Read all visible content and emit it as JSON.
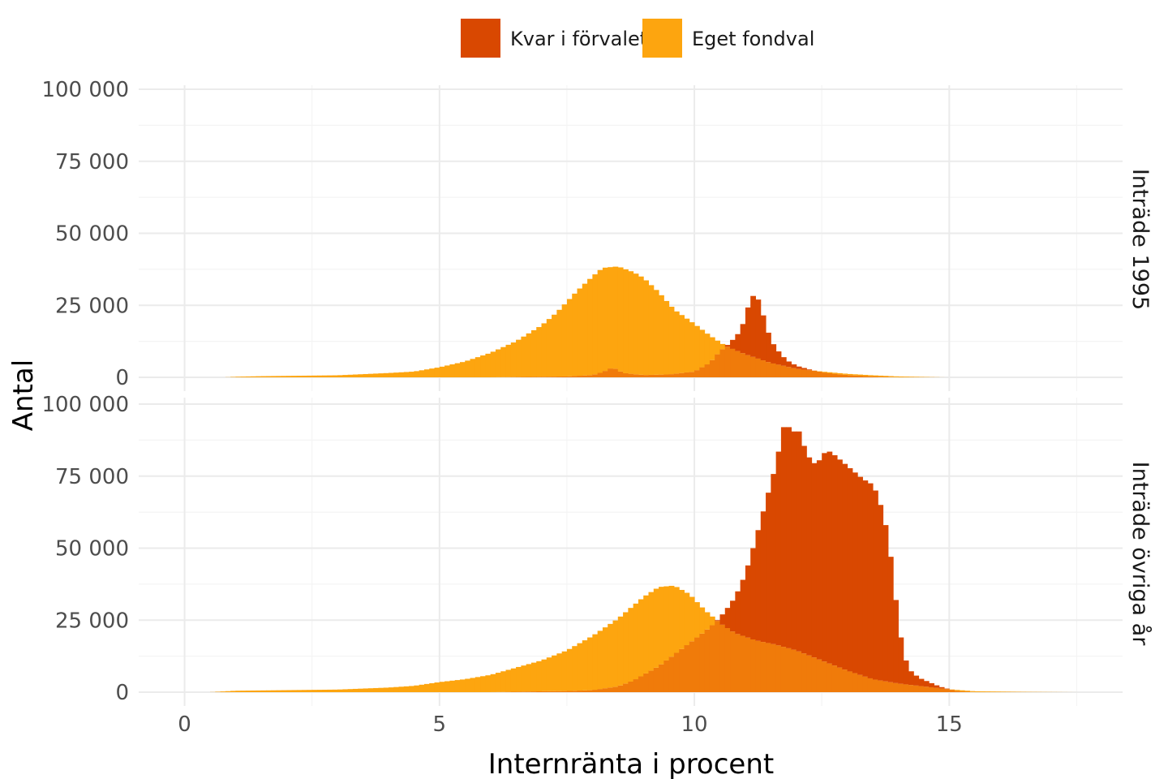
{
  "colors": {
    "kvar": "#D94801",
    "eget": "#FDA50F",
    "overlap": "#F07B0A",
    "grid_major": "#EBEBEB",
    "grid_minor": "#F4F4F4",
    "text": "#4D4D4D"
  },
  "legend": {
    "kvar": "Kvar i förvalet",
    "eget": "Eget fondval"
  },
  "chart_data": {
    "type": "histogram",
    "xlabel": "Internränta i procent",
    "ylabel": "Antal",
    "xlim": [
      -0.9,
      18.4
    ],
    "x_ticks": [
      0,
      5,
      10,
      15
    ],
    "x_tick_labels": [
      "0",
      "5",
      "10",
      "15"
    ],
    "y_ticks": [
      0,
      25000,
      50000,
      75000,
      100000
    ],
    "y_tick_labels": [
      "0",
      "25 000",
      "50 000",
      "75 000",
      "100 000"
    ],
    "legend_position": "top",
    "grid": true,
    "panels": [
      {
        "label": "Inträde 1995",
        "ylim": [
          0,
          100000
        ],
        "series": [
          {
            "name": "Eget fondval",
            "color_key": "eget",
            "points": [
              [
                0.8,
                0
              ],
              [
                1.0,
                200
              ],
              [
                1.5,
                400
              ],
              [
                2.0,
                500
              ],
              [
                3.0,
                700
              ],
              [
                4.0,
                1500
              ],
              [
                4.5,
                2000
              ],
              [
                5.0,
                3500
              ],
              [
                5.5,
                5500
              ],
              [
                6.0,
                8500
              ],
              [
                6.5,
                12500
              ],
              [
                7.0,
                18000
              ],
              [
                7.3,
                22500
              ],
              [
                7.7,
                30000
              ],
              [
                8.0,
                35000
              ],
              [
                8.2,
                38000
              ],
              [
                8.5,
                38500
              ],
              [
                8.8,
                36500
              ],
              [
                9.0,
                34500
              ],
              [
                9.3,
                29500
              ],
              [
                9.6,
                23500
              ],
              [
                10.0,
                18500
              ],
              [
                10.3,
                14500
              ],
              [
                10.6,
                11000
              ],
              [
                11.0,
                8000
              ],
              [
                11.5,
                5000
              ],
              [
                12.0,
                3000
              ],
              [
                12.5,
                2000
              ],
              [
                13.0,
                1200
              ],
              [
                13.5,
                700
              ],
              [
                14.0,
                300
              ],
              [
                14.9,
                0
              ]
            ]
          },
          {
            "name": "Kvar i förvalet",
            "color_key": "kvar",
            "points": [
              [
                6.0,
                0
              ],
              [
                6.5,
                100
              ],
              [
                7.0,
                200
              ],
              [
                7.5,
                300
              ],
              [
                8.0,
                800
              ],
              [
                8.2,
                1800
              ],
              [
                8.4,
                3500
              ],
              [
                8.6,
                1500
              ],
              [
                9.0,
                800
              ],
              [
                9.5,
                1000
              ],
              [
                10.0,
                2000
              ],
              [
                10.3,
                5000
              ],
              [
                10.5,
                9000
              ],
              [
                10.7,
                12000
              ],
              [
                10.9,
                16000
              ],
              [
                11.0,
                21000
              ],
              [
                11.1,
                27500
              ],
              [
                11.2,
                29000
              ],
              [
                11.3,
                25000
              ],
              [
                11.4,
                18000
              ],
              [
                11.5,
                13000
              ],
              [
                11.6,
                10000
              ],
              [
                11.8,
                6000
              ],
              [
                12.0,
                4000
              ],
              [
                12.3,
                2500
              ],
              [
                12.6,
                1500
              ],
              [
                13.0,
                800
              ],
              [
                13.5,
                300
              ],
              [
                14.0,
                0
              ]
            ]
          }
        ]
      },
      {
        "label": "Inträde övriga år",
        "ylim": [
          0,
          100000
        ],
        "series": [
          {
            "name": "Eget fondval",
            "color_key": "eget",
            "points": [
              [
                0.5,
                0
              ],
              [
                1.0,
                500
              ],
              [
                2.0,
                700
              ],
              [
                3.0,
                900
              ],
              [
                4.0,
                1600
              ],
              [
                4.5,
                2200
              ],
              [
                5.0,
                3500
              ],
              [
                5.5,
                4500
              ],
              [
                6.0,
                6000
              ],
              [
                6.5,
                8500
              ],
              [
                7.0,
                11000
              ],
              [
                7.5,
                14500
              ],
              [
                8.0,
                19500
              ],
              [
                8.5,
                25500
              ],
              [
                9.0,
                33000
              ],
              [
                9.3,
                36500
              ],
              [
                9.6,
                37000
              ],
              [
                9.9,
                34000
              ],
              [
                10.2,
                28500
              ],
              [
                10.5,
                24000
              ],
              [
                10.8,
                20500
              ],
              [
                11.2,
                18000
              ],
              [
                11.6,
                16500
              ],
              [
                12.0,
                14500
              ],
              [
                12.5,
                11000
              ],
              [
                13.0,
                7500
              ],
              [
                13.5,
                4500
              ],
              [
                14.0,
                3000
              ],
              [
                14.5,
                2000
              ],
              [
                15.0,
                1000
              ],
              [
                15.5,
                300
              ],
              [
                16.5,
                100
              ],
              [
                17.5,
                0
              ]
            ]
          },
          {
            "name": "Kvar i förvalet",
            "color_key": "kvar",
            "points": [
              [
                6.0,
                0
              ],
              [
                7.0,
                300
              ],
              [
                7.5,
                400
              ],
              [
                8.0,
                700
              ],
              [
                8.3,
                1500
              ],
              [
                8.5,
                2000
              ],
              [
                8.8,
                4000
              ],
              [
                9.0,
                6000
              ],
              [
                9.3,
                9000
              ],
              [
                9.6,
                13000
              ],
              [
                9.9,
                17000
              ],
              [
                10.2,
                21000
              ],
              [
                10.4,
                24000
              ],
              [
                10.6,
                28000
              ],
              [
                10.8,
                33000
              ],
              [
                11.0,
                41000
              ],
              [
                11.2,
                53000
              ],
              [
                11.4,
                66000
              ],
              [
                11.6,
                79000
              ],
              [
                11.7,
                88000
              ],
              [
                11.8,
                96000
              ],
              [
                11.9,
                88000
              ],
              [
                12.0,
                93000
              ],
              [
                12.1,
                88000
              ],
              [
                12.2,
                83000
              ],
              [
                12.3,
                80000
              ],
              [
                12.4,
                79000
              ],
              [
                12.5,
                82000
              ],
              [
                12.6,
                84000
              ],
              [
                12.7,
                83000
              ],
              [
                12.9,
                80000
              ],
              [
                13.1,
                77000
              ],
              [
                13.3,
                74000
              ],
              [
                13.5,
                72000
              ],
              [
                13.6,
                68000
              ],
              [
                13.7,
                62000
              ],
              [
                13.8,
                54000
              ],
              [
                13.9,
                40000
              ],
              [
                14.0,
                24000
              ],
              [
                14.1,
                14000
              ],
              [
                14.2,
                8000
              ],
              [
                14.4,
                5000
              ],
              [
                14.6,
                3500
              ],
              [
                14.8,
                2000
              ],
              [
                15.0,
                1000
              ],
              [
                15.2,
                300
              ],
              [
                15.5,
                0
              ]
            ]
          }
        ]
      }
    ]
  }
}
